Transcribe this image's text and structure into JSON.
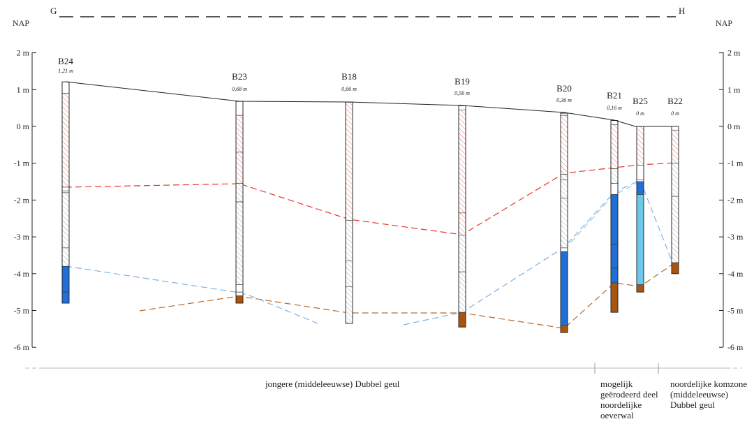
{
  "section": {
    "left_label": "G",
    "right_label": "H"
  },
  "axis": {
    "title_left": "NAP",
    "title_right": "NAP",
    "ticks": [
      {
        "v": 2,
        "label": "2 m"
      },
      {
        "v": 1,
        "label": "1 m"
      },
      {
        "v": 0,
        "label": "0 m"
      },
      {
        "v": -1,
        "label": "-1 m"
      },
      {
        "v": -2,
        "label": "-2 m"
      },
      {
        "v": -3,
        "label": "-3 m"
      },
      {
        "v": -4,
        "label": "-4 m"
      },
      {
        "v": -5,
        "label": "-5 m"
      },
      {
        "v": -6,
        "label": "-6 m"
      }
    ]
  },
  "colors": {
    "hatch_red": "#e8726c",
    "hatch_grey": "#9aa3ad",
    "blue_dark": "#1f6fd6",
    "blue_light": "#6cc9ec",
    "brown": "#a8550f",
    "line_red": "#e8342c",
    "line_blue": "#7fb2e0",
    "line_brown": "#b86a2a",
    "surface": "#222222"
  },
  "boreholes": [
    {
      "name": "B24",
      "elev": "1,21 m",
      "top": 1.21,
      "bottom": -4.8,
      "layers": [
        {
          "from": 1.21,
          "to": 0.9,
          "fill": "blank"
        },
        {
          "from": 0.9,
          "to": -1.65,
          "fill": "hatch_red"
        },
        {
          "from": -1.65,
          "to": -1.75,
          "fill": "blank"
        },
        {
          "from": -1.75,
          "to": -1.8,
          "fill": "blank"
        },
        {
          "from": -1.8,
          "to": -3.3,
          "fill": "hatch_grey"
        },
        {
          "from": -3.3,
          "to": -3.8,
          "fill": "hatch_grey"
        },
        {
          "from": -3.8,
          "to": -4.5,
          "fill": "blue_dark"
        },
        {
          "from": -4.5,
          "to": -4.8,
          "fill": "blue_dark"
        }
      ]
    },
    {
      "name": "B23",
      "elev": "0,68 m",
      "top": 0.68,
      "bottom": -4.8,
      "layers": [
        {
          "from": 0.68,
          "to": 0.3,
          "fill": "blank"
        },
        {
          "from": 0.3,
          "to": -0.7,
          "fill": "hatch_red"
        },
        {
          "from": -0.7,
          "to": -1.55,
          "fill": "hatch_red"
        },
        {
          "from": -1.55,
          "to": -2.05,
          "fill": "hatch_grey"
        },
        {
          "from": -2.05,
          "to": -4.3,
          "fill": "hatch_grey"
        },
        {
          "from": -4.3,
          "to": -4.5,
          "fill": "blank"
        },
        {
          "from": -4.5,
          "to": -4.6,
          "fill": "blank"
        },
        {
          "from": -4.6,
          "to": -4.8,
          "fill": "brown"
        }
      ]
    },
    {
      "name": "B18",
      "elev": "0,66 m",
      "top": 0.66,
      "bottom": -5.35,
      "layers": [
        {
          "from": 0.66,
          "to": -2.55,
          "fill": "hatch_red"
        },
        {
          "from": -2.55,
          "to": -3.65,
          "fill": "hatch_grey"
        },
        {
          "from": -3.65,
          "to": -4.35,
          "fill": "hatch_grey"
        },
        {
          "from": -4.35,
          "to": -5.35,
          "fill": "hatch_grey"
        }
      ]
    },
    {
      "name": "B19",
      "elev": "0,56 m",
      "top": 0.56,
      "bottom": -5.45,
      "layers": [
        {
          "from": 0.56,
          "to": 0.45,
          "fill": "blank"
        },
        {
          "from": 0.45,
          "to": -2.35,
          "fill": "hatch_red"
        },
        {
          "from": -2.35,
          "to": -2.95,
          "fill": "hatch_red"
        },
        {
          "from": -2.95,
          "to": -3.95,
          "fill": "hatch_grey"
        },
        {
          "from": -3.95,
          "to": -5.05,
          "fill": "hatch_grey"
        },
        {
          "from": -5.05,
          "to": -5.45,
          "fill": "brown"
        }
      ]
    },
    {
      "name": "B20",
      "elev": "0,36 m",
      "top": 0.36,
      "bottom": -5.6,
      "layers": [
        {
          "from": 0.36,
          "to": 0.3,
          "fill": "blank"
        },
        {
          "from": 0.3,
          "to": -1.3,
          "fill": "hatch_red"
        },
        {
          "from": -1.3,
          "to": -1.45,
          "fill": "hatch_grey"
        },
        {
          "from": -1.45,
          "to": -1.95,
          "fill": "hatch_grey"
        },
        {
          "from": -1.95,
          "to": -3.3,
          "fill": "hatch_grey"
        },
        {
          "from": -3.3,
          "to": -3.4,
          "fill": "blank"
        },
        {
          "from": -3.4,
          "to": -5.4,
          "fill": "blue_dark"
        },
        {
          "from": -5.4,
          "to": -5.6,
          "fill": "brown"
        }
      ]
    },
    {
      "name": "B21",
      "elev": "0,16 m",
      "top": 0.16,
      "bottom": -5.05,
      "layers": [
        {
          "from": 0.16,
          "to": 0.05,
          "fill": "blank"
        },
        {
          "from": 0.05,
          "to": -1.15,
          "fill": "hatch_red"
        },
        {
          "from": -1.15,
          "to": -1.55,
          "fill": "hatch_grey"
        },
        {
          "from": -1.55,
          "to": -1.85,
          "fill": "blank"
        },
        {
          "from": -1.85,
          "to": -3.2,
          "fill": "blue_dark"
        },
        {
          "from": -3.2,
          "to": -3.85,
          "fill": "blue_dark"
        },
        {
          "from": -3.85,
          "to": -4.25,
          "fill": "blue_dark"
        },
        {
          "from": -4.25,
          "to": -5.05,
          "fill": "brown"
        }
      ]
    },
    {
      "name": "B25",
      "elev": "0 m",
      "top": 0,
      "bottom": -4.5,
      "layers": [
        {
          "from": 0,
          "to": -1.05,
          "fill": "hatch_red"
        },
        {
          "from": -1.05,
          "to": -1.45,
          "fill": "blank"
        },
        {
          "from": -1.45,
          "to": -1.5,
          "fill": "blank"
        },
        {
          "from": -1.5,
          "to": -1.85,
          "fill": "blue_dark"
        },
        {
          "from": -1.85,
          "to": -4.3,
          "fill": "blue_light"
        },
        {
          "from": -4.3,
          "to": -4.5,
          "fill": "brown"
        }
      ]
    },
    {
      "name": "B22",
      "elev": "0 m",
      "top": 0,
      "bottom": -4.0,
      "layers": [
        {
          "from": 0,
          "to": -0.1,
          "fill": "blank"
        },
        {
          "from": -0.1,
          "to": -1.0,
          "fill": "hatch_red"
        },
        {
          "from": -1.0,
          "to": -1.9,
          "fill": "hatch_grey"
        },
        {
          "from": -1.9,
          "to": -3.7,
          "fill": "hatch_grey"
        },
        {
          "from": -3.7,
          "to": -4.0,
          "fill": "brown"
        }
      ]
    }
  ],
  "zones": [
    {
      "label": "jongere (middeleeuwse) Dubbel geul"
    },
    {
      "label": "mogelijk\ngeërodeerd deel\nnoordelijke\noeverwal"
    },
    {
      "label": "noordelijke komzone\n(middeleeuwse)\nDubbel geul"
    }
  ]
}
